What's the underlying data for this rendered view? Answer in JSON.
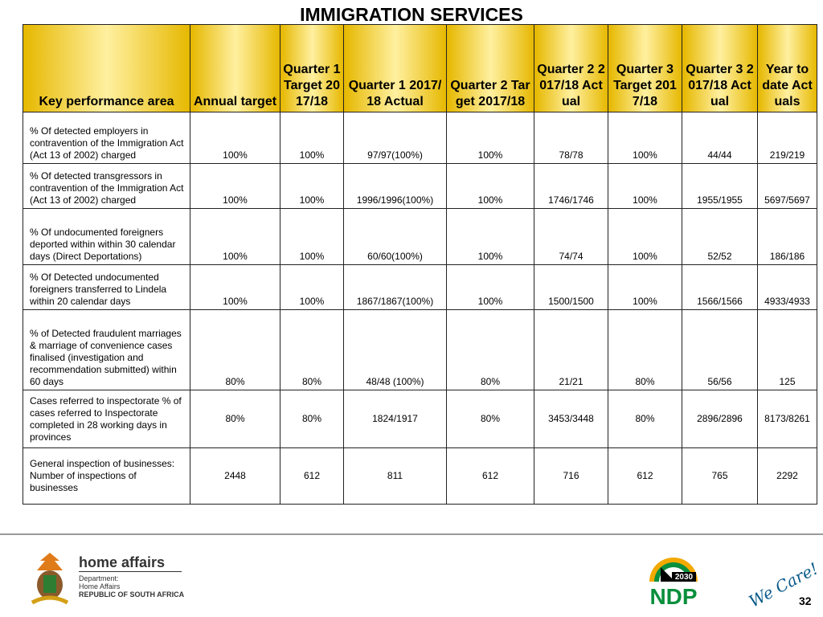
{
  "title": "IMMIGRATION SERVICES",
  "table": {
    "header": [
      "Key performance area",
      "Annual target",
      "Quarter 1 Target 2017/18",
      "Quarter 1 2017/18 Actual",
      "Quarter 2 Target 2017/18",
      "Quarter 2 2017/18 Actual",
      "Quarter 3 Target 2017/18",
      "Quarter 3 2017/18 Actual",
      "Year to date Actuals"
    ],
    "rows": [
      [
        "% Of detected employers in contravention of the Immigration Act (Act 13 of 2002) charged",
        "100%",
        "100%",
        "97/97(100%)",
        "100%",
        "78/78",
        "100%",
        "44/44",
        "219/219"
      ],
      [
        "% Of detected transgressors in contravention of the Immigration Act (Act 13 of 2002) charged",
        "100%",
        "100%",
        "1996/1996(100%)",
        "100%",
        "1746/1746",
        "100%",
        "1955/1955",
        "5697/5697"
      ],
      [
        "% Of undocumented foreigners deported within within 30 calendar days (Direct Deportations)",
        "100%",
        "100%",
        "60/60(100%)",
        "100%",
        "74/74",
        "100%",
        "52/52",
        "186/186"
      ],
      [
        "% Of Detected undocumented foreigners transferred to Lindela within 20  calendar days",
        "100%",
        "100%",
        "1867/1867(100%)",
        "100%",
        "1500/1500",
        "100%",
        "1566/1566",
        "4933/4933"
      ],
      [
        "% of Detected fraudulent marriages & marriage of convenience cases finalised (investigation and recommendation submitted) within 60 days",
        "80%",
        "80%",
        "48/48 (100%)",
        "80%",
        "21/21",
        "80%",
        "56/56",
        "125"
      ],
      [
        "Cases referred to inspectorate % of cases referred to Inspectorate completed in 28 working days in provinces",
        "80%",
        "80%",
        "1824/1917",
        "80%",
        "3453/3448",
        "80%",
        "2896/2896",
        "8173/8261"
      ],
      [
        "General inspection of businesses: Number of inspections of businesses",
        "2448",
        "612",
        "811",
        "612",
        "716",
        "612",
        "765",
        "2292"
      ]
    ]
  },
  "footer": {
    "brand": "home affairs",
    "dept_lines": [
      "Department:",
      "Home Affairs",
      "REPUBLIC OF SOUTH AFRICA"
    ],
    "ndp_year": "2030",
    "ndp": "NDP",
    "slogan": "We Care!",
    "page": "32"
  }
}
